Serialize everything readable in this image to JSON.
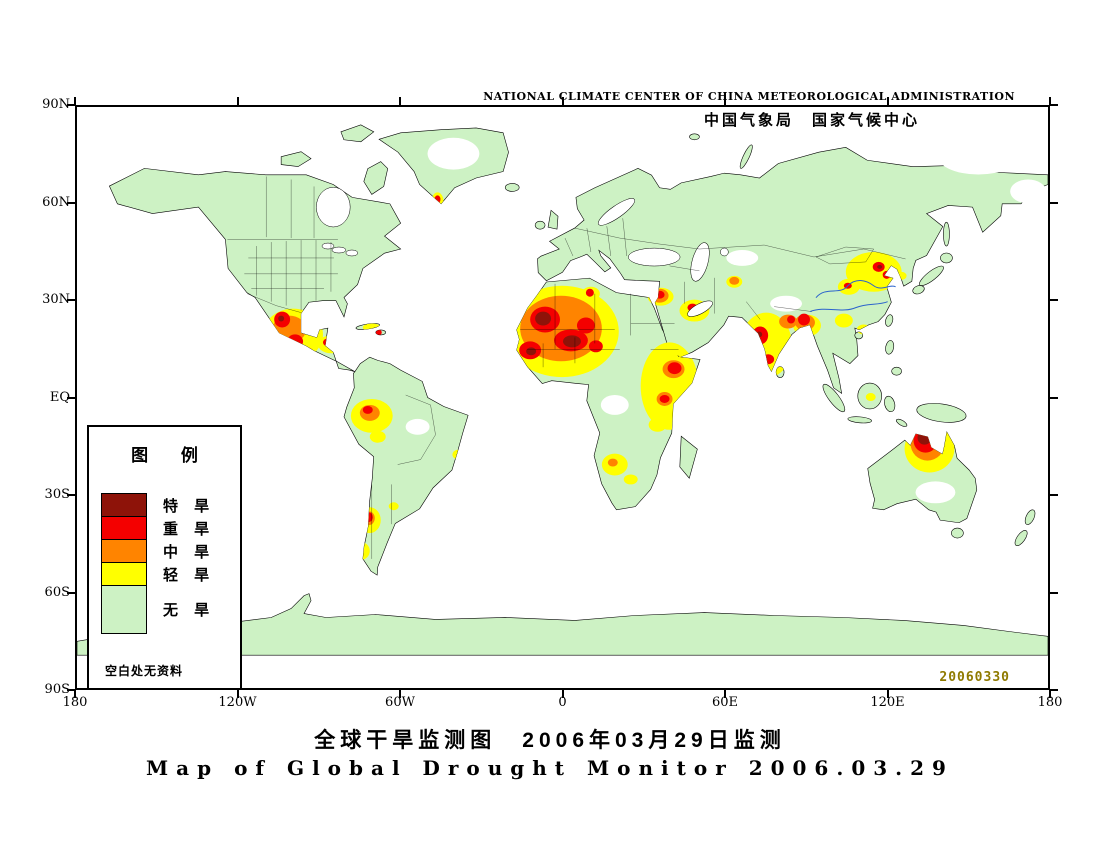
{
  "header": {
    "org_en": "NATIONAL CLIMATE CENTER OF CHINA METEOROLOGICAL ADMINISTRATION",
    "org_cn": "中国气象局　国家气候中心"
  },
  "titles": {
    "cn": "全球干旱监测图　2006年03月29日监测",
    "en": "Map of Global Drought Monitor 2006.03.29"
  },
  "axes": {
    "lat": [
      "90N",
      "60N",
      "30N",
      "EQ",
      "30S",
      "60S",
      "90S"
    ],
    "lon": [
      "180",
      "120W",
      "60W",
      "0",
      "60E",
      "120E",
      "180"
    ]
  },
  "legend": {
    "title": "图 例",
    "items": [
      {
        "label": "特 旱",
        "level": "extreme"
      },
      {
        "label": "重 旱",
        "level": "severe"
      },
      {
        "label": "中 旱",
        "level": "moderate"
      },
      {
        "label": "轻 旱",
        "level": "light"
      },
      {
        "label": "无 旱",
        "level": "none"
      }
    ],
    "note": "空白处无资料"
  },
  "map": {
    "date_stamp": "20060330",
    "drought_regions": {
      "light": [
        [
          217,
          229,
          30,
          26
        ],
        [
          255,
          239,
          13,
          9
        ],
        [
          296,
          222,
          9,
          4
        ],
        [
          296,
          311,
          21,
          17
        ],
        [
          302,
          332,
          8,
          6
        ],
        [
          294,
          416,
          11,
          13
        ],
        [
          285,
          447,
          9,
          9
        ],
        [
          318,
          402,
          5,
          4
        ],
        [
          383,
          350,
          6,
          5
        ],
        [
          390,
          368,
          5,
          4
        ],
        [
          362,
          95,
          6,
          9
        ],
        [
          487,
          226,
          57,
          46
        ],
        [
          516,
          188,
          9,
          7
        ],
        [
          595,
          281,
          29,
          44
        ],
        [
          583,
          320,
          9,
          7
        ],
        [
          540,
          360,
          13,
          11
        ],
        [
          556,
          375,
          7,
          5
        ],
        [
          586,
          191,
          13,
          9
        ],
        [
          620,
          205,
          15,
          11
        ],
        [
          660,
          176,
          8,
          6
        ],
        [
          692,
          240,
          26,
          33
        ],
        [
          733,
          220,
          14,
          11
        ],
        [
          800,
          166,
          28,
          20
        ],
        [
          775,
          181,
          11,
          8
        ],
        [
          770,
          215,
          9,
          7
        ],
        [
          790,
          224,
          7,
          5
        ],
        [
          828,
          170,
          5,
          4
        ],
        [
          797,
          292,
          5,
          4
        ],
        [
          856,
          344,
          25,
          24
        ]
      ],
      "moderate": [
        [
          213,
          224,
          17,
          14
        ],
        [
          294,
          308,
          10,
          8
        ],
        [
          293,
          414,
          6,
          7
        ],
        [
          432,
          184,
          4,
          3
        ],
        [
          486,
          223,
          41,
          33
        ],
        [
          599,
          264,
          11,
          9
        ],
        [
          590,
          294,
          8,
          7
        ],
        [
          538,
          358,
          5,
          4
        ],
        [
          585,
          190,
          9,
          7
        ],
        [
          660,
          175,
          5,
          4
        ],
        [
          714,
          216,
          9,
          7
        ],
        [
          731,
          217,
          10,
          8
        ],
        [
          854,
          339,
          17,
          17
        ]
      ],
      "severe": [
        [
          206,
          214,
          8,
          8
        ],
        [
          219,
          236,
          8,
          7
        ],
        [
          231,
          247,
          6,
          5
        ],
        [
          252,
          237,
          5,
          4
        ],
        [
          303,
          227,
          3,
          3
        ],
        [
          292,
          305,
          5,
          4
        ],
        [
          293,
          413,
          4,
          5
        ],
        [
          284,
          446,
          4,
          4
        ],
        [
          362,
          93,
          3,
          4
        ],
        [
          470,
          214,
          15,
          13
        ],
        [
          496,
          235,
          17,
          11
        ],
        [
          455,
          245,
          11,
          9
        ],
        [
          511,
          220,
          9,
          8
        ],
        [
          521,
          241,
          7,
          6
        ],
        [
          515,
          187,
          4,
          4
        ],
        [
          600,
          263,
          7,
          6
        ],
        [
          590,
          294,
          5,
          4
        ],
        [
          585,
          189,
          5,
          4
        ],
        [
          618,
          202,
          5,
          4
        ],
        [
          686,
          230,
          8,
          9
        ],
        [
          694,
          254,
          6,
          5
        ],
        [
          717,
          214,
          4,
          4
        ],
        [
          730,
          214,
          6,
          6
        ],
        [
          805,
          161,
          6,
          5
        ],
        [
          813,
          169,
          4,
          4
        ],
        [
          774,
          180,
          4,
          3
        ],
        [
          852,
          336,
          12,
          12
        ]
      ],
      "extreme": [
        [
          205,
          213,
          3,
          3
        ],
        [
          468,
          213,
          8,
          7
        ],
        [
          497,
          236,
          9,
          6
        ],
        [
          456,
          246,
          5,
          4
        ],
        [
          685,
          229,
          3,
          3
        ],
        [
          806,
          161,
          2.5,
          2
        ],
        [
          851,
          333,
          7,
          7
        ]
      ]
    }
  },
  "colors": {
    "extreme": "#8e1309",
    "severe": "#f40000",
    "moderate": "#ff8400",
    "light": "#ffff00",
    "none": "#cdf2c4",
    "ocean": "#ffffff",
    "river": "#2b63cc",
    "date_stamp": "#8f7a00"
  }
}
